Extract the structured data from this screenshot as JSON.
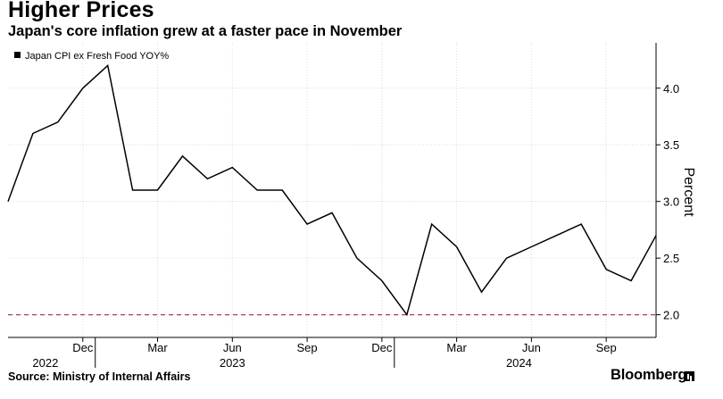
{
  "title": "Higher Prices",
  "subtitle": "Japan's core inflation grew at a faster pace in November",
  "source": "Source: Ministry of Internal Affairs",
  "brand": "Bloomberg",
  "chart_data": {
    "type": "line",
    "legend": "Japan CPI ex Fresh Food YOY%",
    "legend_position": "top-left",
    "ylabel": "Percent",
    "ylim": [
      1.8,
      4.4
    ],
    "yticks": [
      2.0,
      2.5,
      3.0,
      3.5,
      4.0
    ],
    "ytick_labels": [
      "2.0",
      "2.5",
      "3.0",
      "3.5",
      "4.0"
    ],
    "grid": true,
    "y_axis_side": "right",
    "x": [
      "2022-09",
      "2022-10",
      "2022-11",
      "2022-12",
      "2023-01",
      "2023-02",
      "2023-03",
      "2023-04",
      "2023-05",
      "2023-06",
      "2023-07",
      "2023-08",
      "2023-09",
      "2023-10",
      "2023-11",
      "2023-12",
      "2024-01",
      "2024-02",
      "2024-03",
      "2024-04",
      "2024-05",
      "2024-06",
      "2024-07",
      "2024-08",
      "2024-09",
      "2024-10",
      "2024-11"
    ],
    "series": [
      {
        "name": "Japan CPI ex Fresh Food YOY%",
        "color": "#000000",
        "values": [
          3.0,
          3.6,
          3.7,
          4.0,
          4.2,
          3.1,
          3.1,
          3.4,
          3.2,
          3.3,
          3.1,
          3.1,
          2.8,
          2.9,
          2.5,
          2.3,
          2.0,
          2.8,
          2.6,
          2.2,
          2.5,
          2.6,
          2.7,
          2.8,
          2.4,
          2.3,
          2.7
        ]
      }
    ],
    "reference_line": {
      "value": 2.0,
      "color": "#b03a60",
      "style": "dashed"
    },
    "xticks": [
      {
        "index": 3,
        "label": "Dec"
      },
      {
        "index": 6,
        "label": "Mar"
      },
      {
        "index": 9,
        "label": "Jun"
      },
      {
        "index": 12,
        "label": "Sep"
      },
      {
        "index": 15,
        "label": "Dec"
      },
      {
        "index": 18,
        "label": "Mar"
      },
      {
        "index": 21,
        "label": "Jun"
      },
      {
        "index": 24,
        "label": "Sep"
      }
    ],
    "year_labels": [
      {
        "index": 1.5,
        "label": "2022"
      },
      {
        "index": 9,
        "label": "2023"
      },
      {
        "index": 20.5,
        "label": "2024"
      }
    ],
    "year_dividers": [
      4,
      16
    ]
  }
}
